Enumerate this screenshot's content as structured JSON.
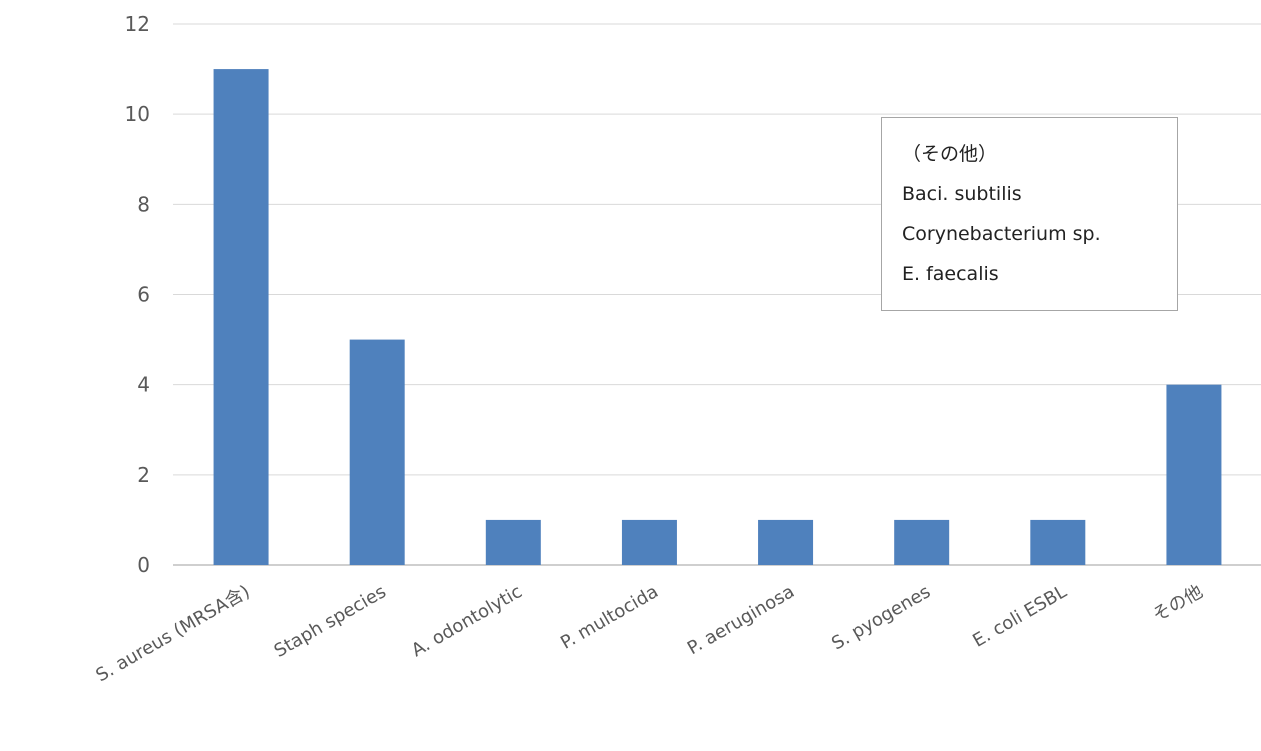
{
  "chart_data": {
    "type": "bar",
    "categories": [
      "S. aureus (MRSA含)",
      "Staph species",
      "A. odontolytic",
      "P. multocida",
      "P. aeruginosa",
      "S. pyogenes",
      "E. coli ESBL",
      "その他"
    ],
    "values": [
      11,
      5,
      1,
      1,
      1,
      1,
      1,
      4
    ],
    "ylim": [
      0,
      12
    ],
    "yticks": [
      0,
      2,
      4,
      6,
      8,
      10,
      12
    ],
    "grid": true,
    "bar_color": "#4f81bd",
    "gridline_color": "#d9d9d9"
  },
  "note": {
    "lines": [
      "（その他）",
      "Baci. subtilis",
      "Corynebacterium sp.",
      "E. faecalis"
    ]
  }
}
